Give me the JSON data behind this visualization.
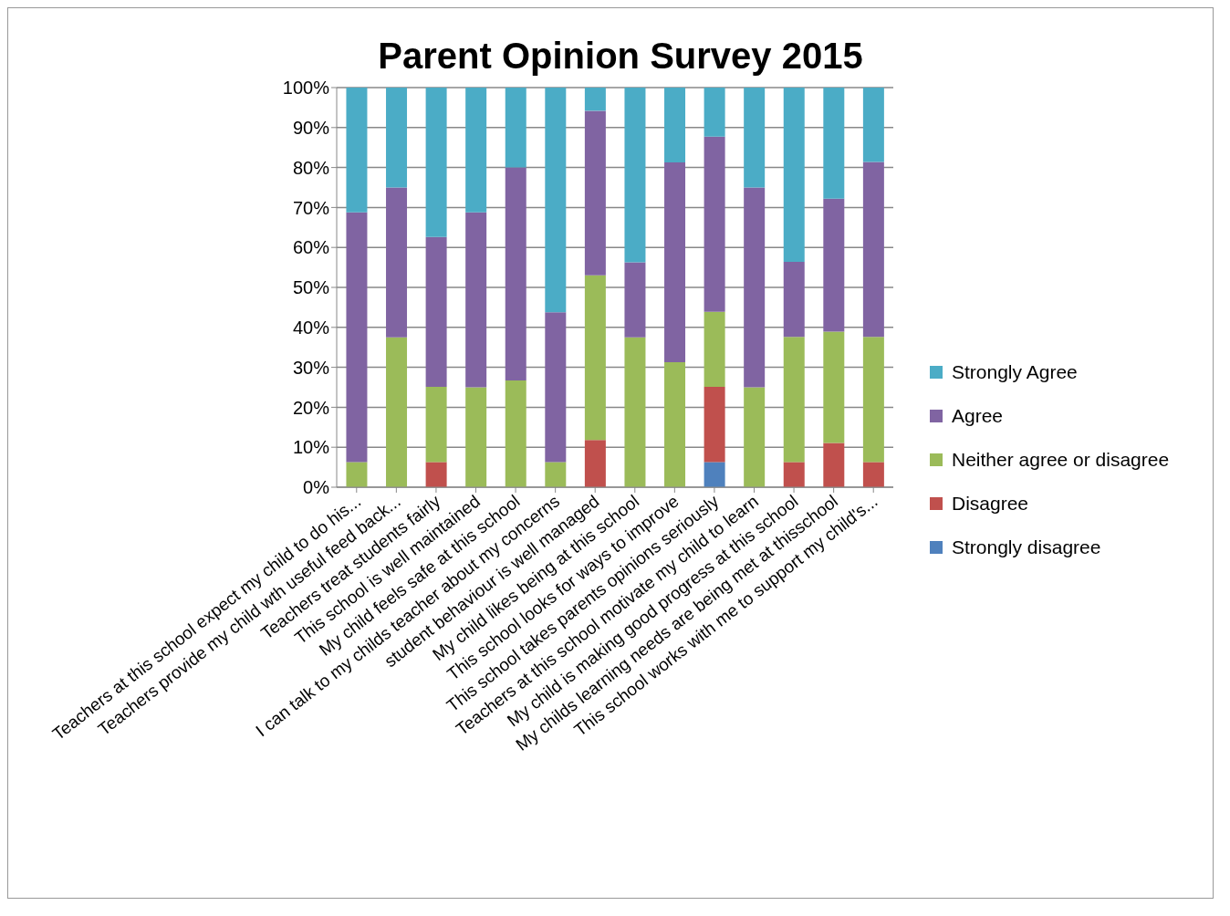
{
  "chart_data": {
    "type": "bar",
    "title": "Parent Opinion Survey 2015",
    "stacked": true,
    "grid": "y",
    "legend": "right",
    "categories": [
      "Teachers at this school expect my child to do his...",
      "Teachers provide my child wth useful feed back...",
      "Teachers treat students fairly",
      "This school is well maintained",
      "My child feels safe at this school",
      "I can talk to my childs teacher about my concerns",
      "student behaviour is well managed",
      "My child likes being at this school",
      "This school looks for ways to improve",
      "This school takes parents opinions seriously",
      "Teachers at this school motivate my child to learn",
      "My child is making good progress at this school",
      "My childs learning needs are being met at thisschool",
      "This school works with me to support my child's..."
    ],
    "ylim": [
      0,
      100
    ],
    "yticks": [
      {
        "value": 0,
        "label": "0%"
      },
      {
        "value": 10,
        "label": "10%"
      },
      {
        "value": 20,
        "label": "20%"
      },
      {
        "value": 30,
        "label": "30%"
      },
      {
        "value": 40,
        "label": "40%"
      },
      {
        "value": 50,
        "label": "50%"
      },
      {
        "value": 60,
        "label": "60%"
      },
      {
        "value": 70,
        "label": "70%"
      },
      {
        "value": 80,
        "label": "80%"
      },
      {
        "value": 90,
        "label": "90%"
      },
      {
        "value": 100,
        "label": "100%"
      }
    ],
    "series": [
      {
        "name": "Strongly disagree",
        "color": "#4f81bd",
        "values": [
          0,
          0,
          0,
          0,
          0,
          0,
          0,
          0,
          0,
          6.3,
          0,
          0,
          0,
          0
        ]
      },
      {
        "name": "Disagree",
        "color": "#c0504d",
        "values": [
          0,
          0,
          6.3,
          0,
          0,
          0,
          11.8,
          0,
          0,
          18.8,
          0,
          6.3,
          11.1,
          6.3
        ]
      },
      {
        "name": "Neither agree or disagree",
        "color": "#9bbb59",
        "values": [
          6.3,
          37.5,
          18.8,
          25,
          26.7,
          6.3,
          41.2,
          37.5,
          31.3,
          18.8,
          25,
          31.3,
          27.8,
          31.3
        ]
      },
      {
        "name": "Agree",
        "color": "#8064a2",
        "values": [
          62.5,
          37.5,
          37.5,
          43.8,
          53.3,
          37.5,
          41.2,
          18.8,
          50,
          43.8,
          50,
          18.8,
          33.3,
          43.8
        ]
      },
      {
        "name": "Strongly Agree",
        "color": "#4bacc6",
        "values": [
          31.3,
          25,
          37.5,
          31.3,
          20,
          56.3,
          5.8,
          43.8,
          18.8,
          12.5,
          25,
          43.8,
          27.8,
          18.8
        ]
      }
    ]
  }
}
